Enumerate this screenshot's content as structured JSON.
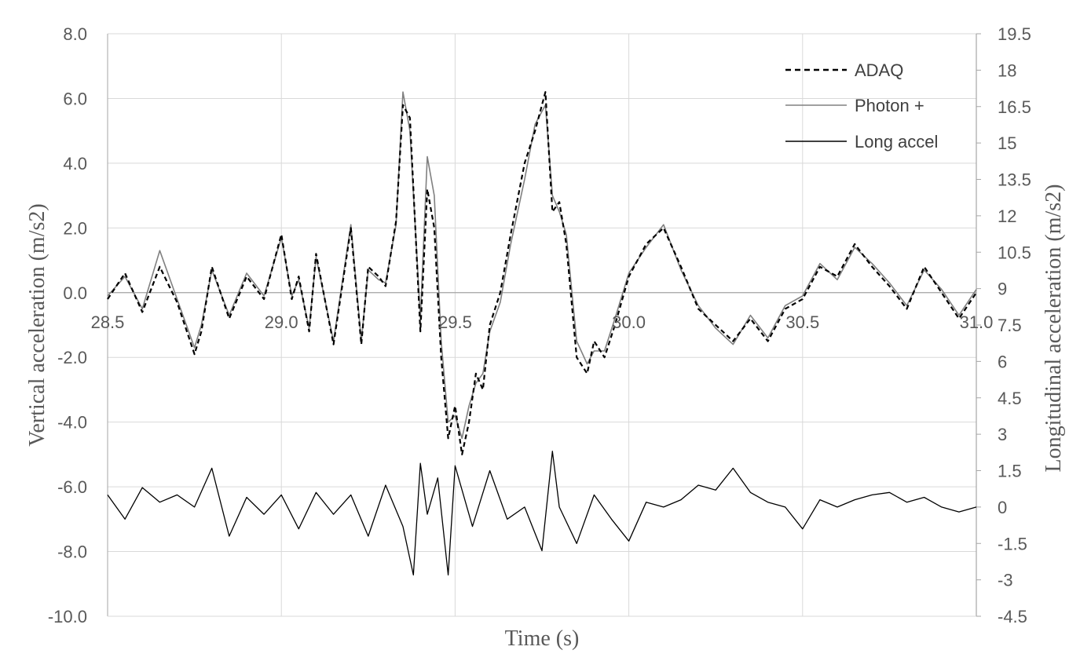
{
  "chart_data": {
    "type": "line",
    "xlabel": "Time (s)",
    "ylabel": "Vertical acceleration (m/s2)",
    "y2label": "Longitudinal acceleration (m/s2)",
    "xlim": [
      28.5,
      31.0
    ],
    "ylim": [
      -10.0,
      8.0
    ],
    "y2lim": [
      -4.5,
      19.5
    ],
    "x_ticks": [
      "28.5",
      "29.0",
      "29.5",
      "30.0",
      "30.5",
      "31.0"
    ],
    "y_ticks": [
      "-10.0",
      "-8.0",
      "-6.0",
      "-4.0",
      "-2.0",
      "0.0",
      "2.0",
      "4.0",
      "6.0",
      "8.0"
    ],
    "y2_ticks": [
      "-4.5",
      "-3",
      "-1.5",
      "0",
      "1.5",
      "3",
      "4.5",
      "6",
      "7.5",
      "9",
      "10.5",
      "12",
      "13.5",
      "15",
      "16.5",
      "18",
      "19.5"
    ],
    "grid": true,
    "legend_position": "top-right",
    "series": [
      {
        "name": "ADAQ",
        "axis": "left",
        "style": "dashed",
        "color": "#000000",
        "x": [
          28.5,
          28.55,
          28.6,
          28.65,
          28.7,
          28.75,
          28.77,
          28.8,
          28.85,
          28.9,
          28.95,
          29.0,
          29.03,
          29.05,
          29.08,
          29.1,
          29.15,
          29.2,
          29.23,
          29.25,
          29.28,
          29.3,
          29.33,
          29.35,
          29.37,
          29.4,
          29.42,
          29.44,
          29.46,
          29.48,
          29.5,
          29.52,
          29.54,
          29.56,
          29.58,
          29.6,
          29.63,
          29.66,
          29.7,
          29.73,
          29.76,
          29.78,
          29.8,
          29.82,
          29.85,
          29.88,
          29.9,
          29.93,
          29.96,
          30.0,
          30.05,
          30.1,
          30.15,
          30.2,
          30.25,
          30.3,
          30.35,
          30.4,
          30.45,
          30.5,
          30.55,
          30.6,
          30.65,
          30.7,
          30.75,
          30.8,
          30.85,
          30.9,
          30.95,
          31.0
        ],
        "values": [
          -0.2,
          0.6,
          -0.6,
          0.8,
          -0.3,
          -1.9,
          -1.2,
          0.8,
          -0.8,
          0.5,
          -0.2,
          1.8,
          -0.2,
          0.5,
          -1.2,
          1.2,
          -1.6,
          2.0,
          -1.6,
          0.8,
          0.5,
          0.2,
          2.2,
          5.8,
          5.4,
          -1.2,
          3.2,
          2.0,
          -2.0,
          -4.5,
          -3.5,
          -5.0,
          -4.0,
          -2.5,
          -3.0,
          -1.0,
          0.0,
          1.8,
          4.0,
          5.0,
          6.2,
          2.5,
          2.8,
          1.5,
          -2.0,
          -2.5,
          -1.5,
          -2.0,
          -1.0,
          0.5,
          1.5,
          2.0,
          0.8,
          -0.5,
          -1.0,
          -1.5,
          -0.8,
          -1.5,
          -0.5,
          -0.2,
          0.8,
          0.5,
          1.5,
          0.8,
          0.2,
          -0.5,
          0.8,
          0.0,
          -0.8,
          0.0
        ]
      },
      {
        "name": "Photon +",
        "axis": "left",
        "style": "solid",
        "color": "#808080",
        "x": [
          28.5,
          28.55,
          28.6,
          28.65,
          28.7,
          28.75,
          28.77,
          28.8,
          28.85,
          28.9,
          28.95,
          29.0,
          29.03,
          29.05,
          29.08,
          29.1,
          29.15,
          29.2,
          29.23,
          29.25,
          29.28,
          29.3,
          29.33,
          29.35,
          29.37,
          29.4,
          29.42,
          29.44,
          29.46,
          29.48,
          29.5,
          29.52,
          29.54,
          29.56,
          29.58,
          29.6,
          29.63,
          29.66,
          29.7,
          29.73,
          29.76,
          29.78,
          29.8,
          29.82,
          29.85,
          29.88,
          29.9,
          29.93,
          29.96,
          30.0,
          30.05,
          30.1,
          30.15,
          30.2,
          30.25,
          30.3,
          30.35,
          30.4,
          30.45,
          30.5,
          30.55,
          30.6,
          30.65,
          30.7,
          30.75,
          30.8,
          30.85,
          30.9,
          30.95,
          31.0
        ],
        "values": [
          -0.1,
          0.5,
          -0.5,
          1.3,
          -0.2,
          -1.7,
          -1.0,
          0.7,
          -0.7,
          0.6,
          -0.1,
          1.7,
          -0.1,
          0.4,
          -1.1,
          1.1,
          -1.5,
          2.1,
          -1.5,
          0.7,
          0.4,
          0.3,
          2.1,
          6.2,
          5.0,
          -0.8,
          4.2,
          3.0,
          -1.5,
          -4.0,
          -3.8,
          -4.5,
          -3.5,
          -2.8,
          -2.5,
          -1.2,
          -0.3,
          1.5,
          3.5,
          5.2,
          5.8,
          3.0,
          2.5,
          1.8,
          -1.5,
          -2.2,
          -1.8,
          -1.8,
          -0.8,
          0.6,
          1.4,
          2.1,
          0.7,
          -0.4,
          -1.1,
          -1.6,
          -0.7,
          -1.4,
          -0.4,
          -0.1,
          0.9,
          0.4,
          1.4,
          0.9,
          0.3,
          -0.4,
          0.7,
          0.1,
          -0.7,
          0.1
        ]
      },
      {
        "name": "Long accel",
        "axis": "right",
        "style": "solid",
        "color": "#000000",
        "x": [
          28.5,
          28.55,
          28.6,
          28.65,
          28.7,
          28.75,
          28.8,
          28.85,
          28.9,
          28.95,
          29.0,
          29.05,
          29.1,
          29.15,
          29.2,
          29.25,
          29.3,
          29.35,
          29.38,
          29.4,
          29.42,
          29.45,
          29.48,
          29.5,
          29.55,
          29.6,
          29.65,
          29.7,
          29.75,
          29.78,
          29.8,
          29.85,
          29.9,
          29.95,
          30.0,
          30.05,
          30.1,
          30.15,
          30.2,
          30.25,
          30.3,
          30.35,
          30.4,
          30.45,
          30.5,
          30.55,
          30.6,
          30.65,
          30.7,
          30.75,
          30.8,
          30.85,
          30.9,
          30.95,
          31.0
        ],
        "values": [
          0.5,
          -0.5,
          0.8,
          0.2,
          0.5,
          0.0,
          1.6,
          -1.2,
          0.4,
          -0.3,
          0.5,
          -0.9,
          0.6,
          -0.3,
          0.5,
          -1.2,
          0.9,
          -0.8,
          -2.8,
          1.8,
          -0.3,
          1.2,
          -2.8,
          1.7,
          -0.8,
          1.5,
          -0.5,
          0.0,
          -1.8,
          2.3,
          0.0,
          -1.5,
          0.5,
          -0.5,
          -1.4,
          0.2,
          0.0,
          0.3,
          0.9,
          0.7,
          1.6,
          0.6,
          0.2,
          0.0,
          -0.9,
          0.3,
          0.0,
          0.3,
          0.5,
          0.6,
          0.2,
          0.4,
          0.0,
          -0.2,
          0.0
        ]
      }
    ]
  }
}
